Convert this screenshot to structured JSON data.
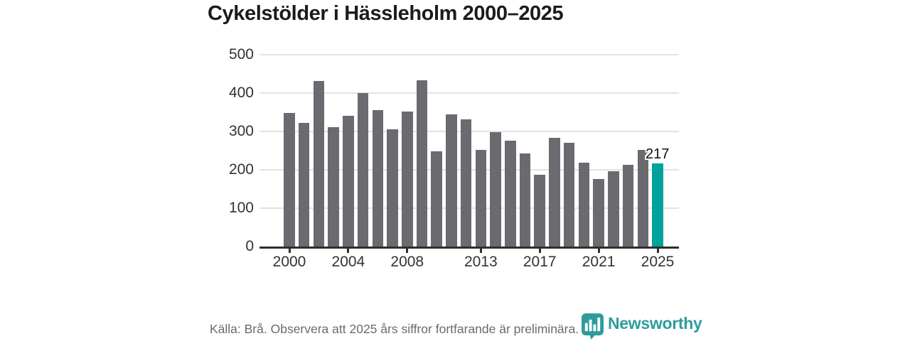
{
  "title": "Cykelstölder i Hässleholm 2000–2025",
  "chart_data": {
    "type": "bar",
    "title": "Cykelstölder i Hässleholm 2000–2025",
    "categories": [
      2000,
      2001,
      2002,
      2003,
      2004,
      2005,
      2006,
      2007,
      2008,
      2009,
      2010,
      2011,
      2012,
      2013,
      2014,
      2015,
      2016,
      2017,
      2018,
      2019,
      2020,
      2021,
      2022,
      2023,
      2024,
      2025
    ],
    "values": [
      349,
      323,
      431,
      312,
      341,
      400,
      356,
      305,
      352,
      433,
      249,
      344,
      332,
      251,
      298,
      276,
      243,
      187,
      284,
      270,
      218,
      176,
      196,
      213,
      252,
      217
    ],
    "xlabel": "",
    "ylabel": "",
    "ylim": [
      0,
      500
    ],
    "yticks": [
      0,
      100,
      200,
      300,
      400,
      500
    ],
    "xticks": [
      2000,
      2004,
      2008,
      2013,
      2017,
      2021,
      2025
    ],
    "grid": true,
    "legend_position": "none",
    "bar_color": "#6b6a70",
    "highlight_year": 2025,
    "highlight_color": "#00a29b",
    "highlight_value_label": "217"
  },
  "footer": {
    "source_note": "Källa: Brå. Observera att 2025 års siffror fortfarande är preliminära.",
    "brand": "Newsworthy",
    "brand_color": "#2d9c9b"
  }
}
